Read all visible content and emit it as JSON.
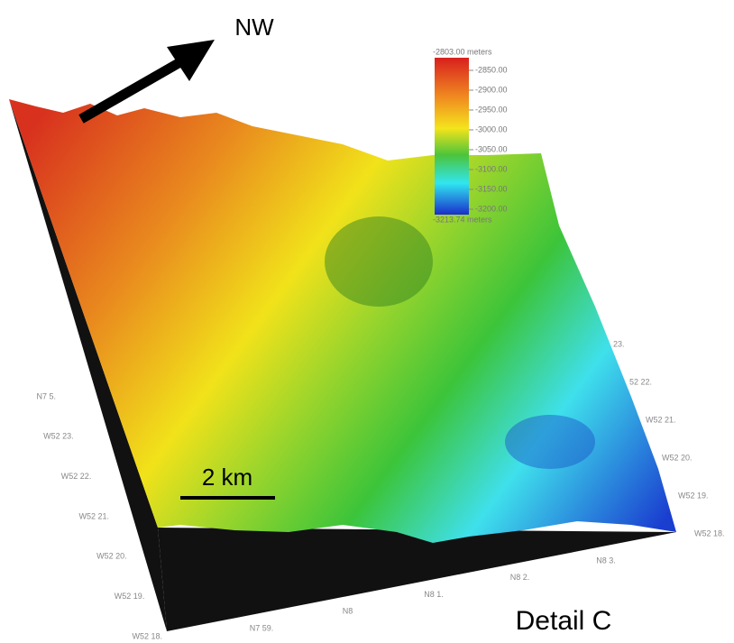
{
  "direction_label": "NW",
  "scale_bar": "2 km",
  "caption": "Detail C",
  "colorbar": {
    "top_label": "-2803.00 meters",
    "ticks": [
      "-2850.00",
      "-2900.00",
      "-2950.00",
      "-3000.00",
      "-3050.00",
      "-3100.00",
      "-3150.00",
      "-3200.00"
    ],
    "bottom_label": "-3213.74 meters"
  },
  "left_axis": [
    "N7 5.",
    "W52 23.",
    "W52 22.",
    "W52 21.",
    "W52 20.",
    "W52 19.",
    "W52 18."
  ],
  "front_axis": [
    "N7 59.",
    "N8",
    "N8 1.",
    "N8 2.",
    "N8 3."
  ],
  "right_axis": [
    "23.",
    "52 22.",
    "W52 21.",
    "W52 20.",
    "W52 19.",
    "W52 18."
  ]
}
